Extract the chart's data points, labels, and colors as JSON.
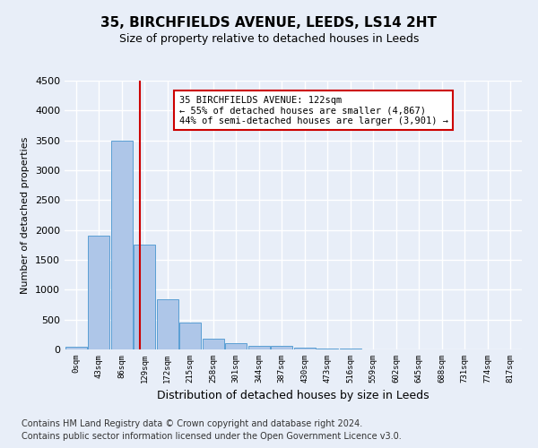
{
  "title1": "35, BIRCHFIELDS AVENUE, LEEDS, LS14 2HT",
  "title2": "Size of property relative to detached houses in Leeds",
  "xlabel": "Distribution of detached houses by size in Leeds",
  "ylabel": "Number of detached properties",
  "bar_values": [
    50,
    1900,
    3500,
    1750,
    840,
    450,
    175,
    100,
    65,
    55,
    35,
    20,
    10,
    5,
    3,
    2,
    2,
    1,
    1,
    0
  ],
  "bin_labels": [
    "0sqm",
    "43sqm",
    "86sqm",
    "129sqm",
    "172sqm",
    "215sqm",
    "258sqm",
    "301sqm",
    "344sqm",
    "387sqm",
    "430sqm",
    "473sqm",
    "516sqm",
    "559sqm",
    "602sqm",
    "645sqm",
    "688sqm",
    "731sqm",
    "774sqm",
    "817sqm"
  ],
  "bar_color": "#aec6e8",
  "bar_edge_color": "#5a9fd4",
  "vline_x": 2.8,
  "vline_color": "#cc0000",
  "annotation_text": "35 BIRCHFIELDS AVENUE: 122sqm\n← 55% of detached houses are smaller (4,867)\n44% of semi-detached houses are larger (3,901) →",
  "annotation_box_color": "#ffffff",
  "annotation_box_edgecolor": "#cc0000",
  "ylim": [
    0,
    4500
  ],
  "yticks": [
    0,
    500,
    1000,
    1500,
    2000,
    2500,
    3000,
    3500,
    4000,
    4500
  ],
  "footer1": "Contains HM Land Registry data © Crown copyright and database right 2024.",
  "footer2": "Contains public sector information licensed under the Open Government Licence v3.0.",
  "background_color": "#e8eef8",
  "grid_color": "#ffffff",
  "title1_fontsize": 11,
  "title2_fontsize": 9,
  "annotation_fontsize": 7.5,
  "footer_fontsize": 7
}
